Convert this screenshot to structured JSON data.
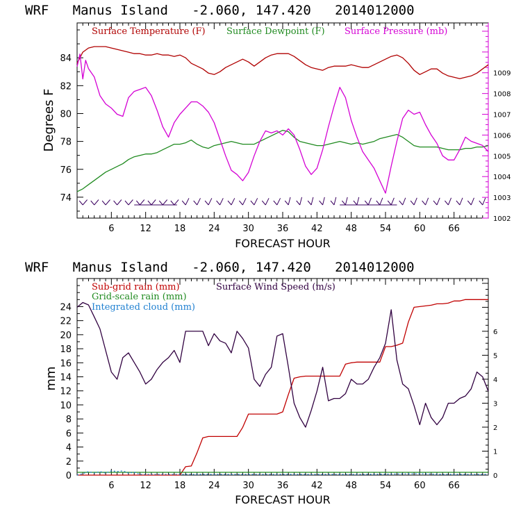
{
  "colors": {
    "temperature": "#b00000",
    "dewpoint": "#1f8a1f",
    "pressure": "#d400d4",
    "subgrid_rain": "#c00000",
    "gridscale_rain": "#1f8a1f",
    "cloud": "#1e7fd0",
    "wind_speed": "#300040",
    "barbs": "#3a0060"
  },
  "chart_data": [
    {
      "type": "line",
      "title": "WRF   Manus Island   -2.060, 147.420   2014012000",
      "xlabel": "FORECAST HOUR",
      "ylabel": "Degrees F",
      "xlim": [
        0,
        72
      ],
      "ylim": [
        72.5,
        86.5
      ],
      "y2lim": [
        1002,
        1011.4
      ],
      "xticks": [
        "6",
        "12",
        "18",
        "24",
        "30",
        "36",
        "42",
        "48",
        "54",
        "60",
        "66"
      ],
      "yticks": [
        "74",
        "76",
        "78",
        "80",
        "82",
        "84"
      ],
      "y2ticks": [
        "1002",
        "1003",
        "1004",
        "1005",
        "1006",
        "1007",
        "1008",
        "1009"
      ],
      "legend_position": "top",
      "series": [
        {
          "name": "Surface Temperature (F)",
          "axis": "left",
          "x": [
            0,
            1,
            2,
            3,
            4,
            5,
            6,
            7,
            8,
            9,
            10,
            11,
            12,
            13,
            14,
            15,
            16,
            17,
            18,
            19,
            20,
            21,
            22,
            23,
            24,
            25,
            26,
            27,
            28,
            29,
            30,
            31,
            32,
            33,
            34,
            35,
            36,
            37,
            38,
            39,
            40,
            41,
            42,
            43,
            44,
            45,
            46,
            47,
            48,
            49,
            50,
            51,
            52,
            53,
            54,
            55,
            56,
            57,
            58,
            59,
            60,
            61,
            62,
            63,
            64,
            65,
            66,
            67,
            68,
            69,
            70,
            71,
            72
          ],
          "values": [
            83.6,
            84.4,
            84.7,
            84.8,
            84.8,
            84.8,
            84.7,
            84.6,
            84.5,
            84.4,
            84.3,
            84.3,
            84.2,
            84.2,
            84.3,
            84.2,
            84.2,
            84.1,
            84.2,
            84.0,
            83.6,
            83.4,
            83.2,
            82.9,
            82.8,
            83.0,
            83.3,
            83.5,
            83.7,
            83.9,
            83.7,
            83.4,
            83.7,
            84.0,
            84.2,
            84.3,
            84.3,
            84.3,
            84.1,
            83.8,
            83.5,
            83.3,
            83.2,
            83.1,
            83.3,
            83.4,
            83.4,
            83.4,
            83.5,
            83.4,
            83.3,
            83.3,
            83.5,
            83.7,
            83.9,
            84.1,
            84.2,
            84.0,
            83.6,
            83.1,
            82.8,
            83.0,
            83.2,
            83.2,
            82.9,
            82.7,
            82.6,
            82.5,
            82.6,
            82.7,
            82.9,
            83.2,
            83.5
          ]
        },
        {
          "name": "Surface Dewpoint (F)",
          "axis": "left",
          "x": [
            0,
            1,
            2,
            3,
            4,
            5,
            6,
            7,
            8,
            9,
            10,
            11,
            12,
            13,
            14,
            15,
            16,
            17,
            18,
            19,
            20,
            21,
            22,
            23,
            24,
            25,
            26,
            27,
            28,
            29,
            30,
            31,
            32,
            33,
            34,
            35,
            36,
            37,
            38,
            39,
            40,
            41,
            42,
            43,
            44,
            45,
            46,
            47,
            48,
            49,
            50,
            51,
            52,
            53,
            54,
            55,
            56,
            57,
            58,
            59,
            60,
            61,
            62,
            63,
            64,
            65,
            66,
            67,
            68,
            69,
            70,
            71,
            72
          ],
          "values": [
            74.4,
            74.6,
            74.9,
            75.2,
            75.5,
            75.8,
            76.0,
            76.2,
            76.4,
            76.7,
            76.9,
            77.0,
            77.1,
            77.1,
            77.2,
            77.4,
            77.6,
            77.8,
            77.8,
            77.9,
            78.1,
            77.8,
            77.6,
            77.5,
            77.7,
            77.8,
            77.9,
            78.0,
            77.9,
            77.8,
            77.8,
            77.8,
            78.0,
            78.2,
            78.4,
            78.6,
            78.8,
            78.7,
            78.3,
            78.0,
            77.9,
            77.8,
            77.7,
            77.7,
            77.8,
            77.9,
            78.0,
            77.9,
            77.8,
            77.9,
            77.8,
            77.9,
            78.0,
            78.2,
            78.3,
            78.4,
            78.5,
            78.3,
            78.0,
            77.7,
            77.6,
            77.6,
            77.6,
            77.6,
            77.5,
            77.4,
            77.4,
            77.4,
            77.5,
            77.5,
            77.6,
            77.6,
            77.7
          ]
        },
        {
          "name": "Surface Pressure (mb)",
          "axis": "right",
          "x": [
            0,
            0.5,
            1,
            1.5,
            2,
            3,
            4,
            5,
            6,
            7,
            8,
            9,
            10,
            11,
            12,
            13,
            14,
            15,
            16,
            17,
            18,
            19,
            20,
            21,
            22,
            23,
            24,
            25,
            26,
            27,
            28,
            29,
            30,
            31,
            32,
            33,
            34,
            35,
            36,
            37,
            38,
            39,
            40,
            41,
            42,
            43,
            44,
            45,
            46,
            47,
            48,
            49,
            50,
            51,
            52,
            53,
            54,
            55,
            56,
            57,
            58,
            59,
            60,
            61,
            62,
            63,
            64,
            65,
            66,
            67,
            68,
            69,
            70,
            71,
            72
          ],
          "values": [
            1009.3,
            1009.9,
            1008.7,
            1009.6,
            1009.2,
            1008.8,
            1007.9,
            1007.5,
            1007.3,
            1007.0,
            1006.9,
            1007.8,
            1008.1,
            1008.2,
            1008.3,
            1007.9,
            1007.2,
            1006.4,
            1005.9,
            1006.6,
            1007.0,
            1007.3,
            1007.6,
            1007.6,
            1007.4,
            1007.1,
            1006.6,
            1005.8,
            1005.0,
            1004.3,
            1004.1,
            1003.8,
            1004.2,
            1005.0,
            1005.7,
            1006.2,
            1006.1,
            1006.2,
            1006.0,
            1006.3,
            1006.0,
            1005.3,
            1004.5,
            1004.1,
            1004.4,
            1005.3,
            1006.4,
            1007.4,
            1008.3,
            1007.8,
            1006.7,
            1005.9,
            1005.2,
            1004.8,
            1004.4,
            1003.8,
            1003.2,
            1004.5,
            1005.7,
            1006.8,
            1007.2,
            1007.0,
            1007.1,
            1006.5,
            1006.0,
            1005.6,
            1005.0,
            1004.8,
            1004.8,
            1005.3,
            1005.9,
            1005.7,
            1005.6,
            1005.5,
            1005.2
          ]
        }
      ]
    },
    {
      "type": "line",
      "title": "WRF   Manus Island   -2.060, 147.420   2014012000",
      "xlabel": "FORECAST HOUR",
      "ylabel": "mm",
      "xlim": [
        0,
        72
      ],
      "ylim": [
        0,
        28
      ],
      "y2lim": [
        0,
        8.2
      ],
      "xticks": [
        "6",
        "12",
        "18",
        "24",
        "30",
        "36",
        "42",
        "48",
        "54",
        "60",
        "66"
      ],
      "yticks": [
        "0",
        "2",
        "4",
        "6",
        "8",
        "10",
        "12",
        "14",
        "16",
        "18",
        "20",
        "22",
        "24"
      ],
      "y2ticks": [
        "0",
        "1",
        "2",
        "3",
        "4",
        "5",
        "6"
      ],
      "legend_position": "top-left",
      "series": [
        {
          "name": "Sub-grid rain (mm)",
          "axis": "left",
          "x": [
            0,
            18,
            19,
            20,
            21,
            22,
            23,
            24,
            28,
            29,
            30,
            35,
            36,
            37,
            38,
            39,
            40,
            41,
            42,
            46,
            47,
            48,
            49,
            53,
            54,
            55,
            56,
            57,
            58,
            59,
            62,
            63,
            64,
            65,
            66,
            67,
            68,
            72
          ],
          "values": [
            0,
            0,
            1.2,
            1.3,
            3.2,
            5.3,
            5.5,
            5.5,
            5.5,
            6.8,
            8.7,
            8.7,
            9.0,
            11.5,
            13.8,
            14.0,
            14.1,
            14.1,
            14.1,
            14.1,
            15.8,
            16.0,
            16.1,
            16.1,
            18.3,
            18.3,
            18.5,
            18.8,
            21.8,
            23.9,
            24.2,
            24.4,
            24.4,
            24.5,
            24.8,
            24.8,
            25.0,
            25.0
          ]
        },
        {
          "name": "Grid-scale rain (mm)",
          "axis": "left",
          "x": [
            0,
            72
          ],
          "values": [
            0.4,
            0.4
          ]
        },
        {
          "name": "Integrated cloud (mm)",
          "axis": "left",
          "x": [
            0,
            1,
            2,
            3,
            4,
            5,
            6,
            7,
            8,
            9,
            10,
            11,
            12,
            20,
            30,
            40,
            50,
            60,
            64,
            72
          ],
          "values": [
            0.0,
            0.2,
            0.5,
            0.3,
            0.5,
            0.3,
            0.6,
            0.5,
            0.6,
            0.3,
            0.4,
            0.1,
            0.1,
            0.1,
            0.1,
            0.1,
            0.1,
            0.2,
            0.1,
            0.1
          ]
        },
        {
          "name": "Surface Wind Speed (m/s)",
          "axis": "right",
          "x": [
            0,
            1,
            2,
            3,
            4,
            5,
            6,
            7,
            8,
            9,
            10,
            11,
            12,
            13,
            14,
            15,
            16,
            17,
            18,
            19,
            20,
            21,
            22,
            23,
            24,
            25,
            26,
            27,
            28,
            29,
            30,
            31,
            32,
            33,
            34,
            35,
            36,
            37,
            38,
            39,
            40,
            41,
            42,
            43,
            44,
            45,
            46,
            47,
            48,
            49,
            50,
            51,
            52,
            53,
            54,
            55,
            56,
            57,
            58,
            59,
            60,
            61,
            62,
            63,
            64,
            65,
            66,
            67,
            68,
            69,
            70,
            71,
            72
          ],
          "values": [
            7.0,
            7.2,
            7.1,
            6.6,
            6.1,
            5.2,
            4.3,
            4.0,
            4.9,
            5.1,
            4.7,
            4.3,
            3.8,
            4.0,
            4.4,
            4.7,
            4.9,
            5.2,
            4.7,
            6.0,
            6.0,
            6.0,
            6.0,
            5.4,
            5.9,
            5.6,
            5.5,
            5.1,
            6.0,
            5.7,
            5.3,
            4.0,
            3.7,
            4.2,
            4.5,
            5.8,
            5.9,
            4.5,
            3.0,
            2.4,
            2.0,
            2.7,
            3.5,
            4.5,
            3.1,
            3.2,
            3.2,
            3.4,
            4.0,
            3.8,
            3.8,
            4.0,
            4.5,
            4.9,
            5.5,
            6.9,
            4.8,
            3.8,
            3.6,
            2.9,
            2.1,
            3.0,
            2.4,
            2.1,
            2.4,
            3.0,
            3.0,
            3.2,
            3.3,
            3.6,
            4.3,
            4.1,
            3.5
          ]
        }
      ]
    }
  ]
}
